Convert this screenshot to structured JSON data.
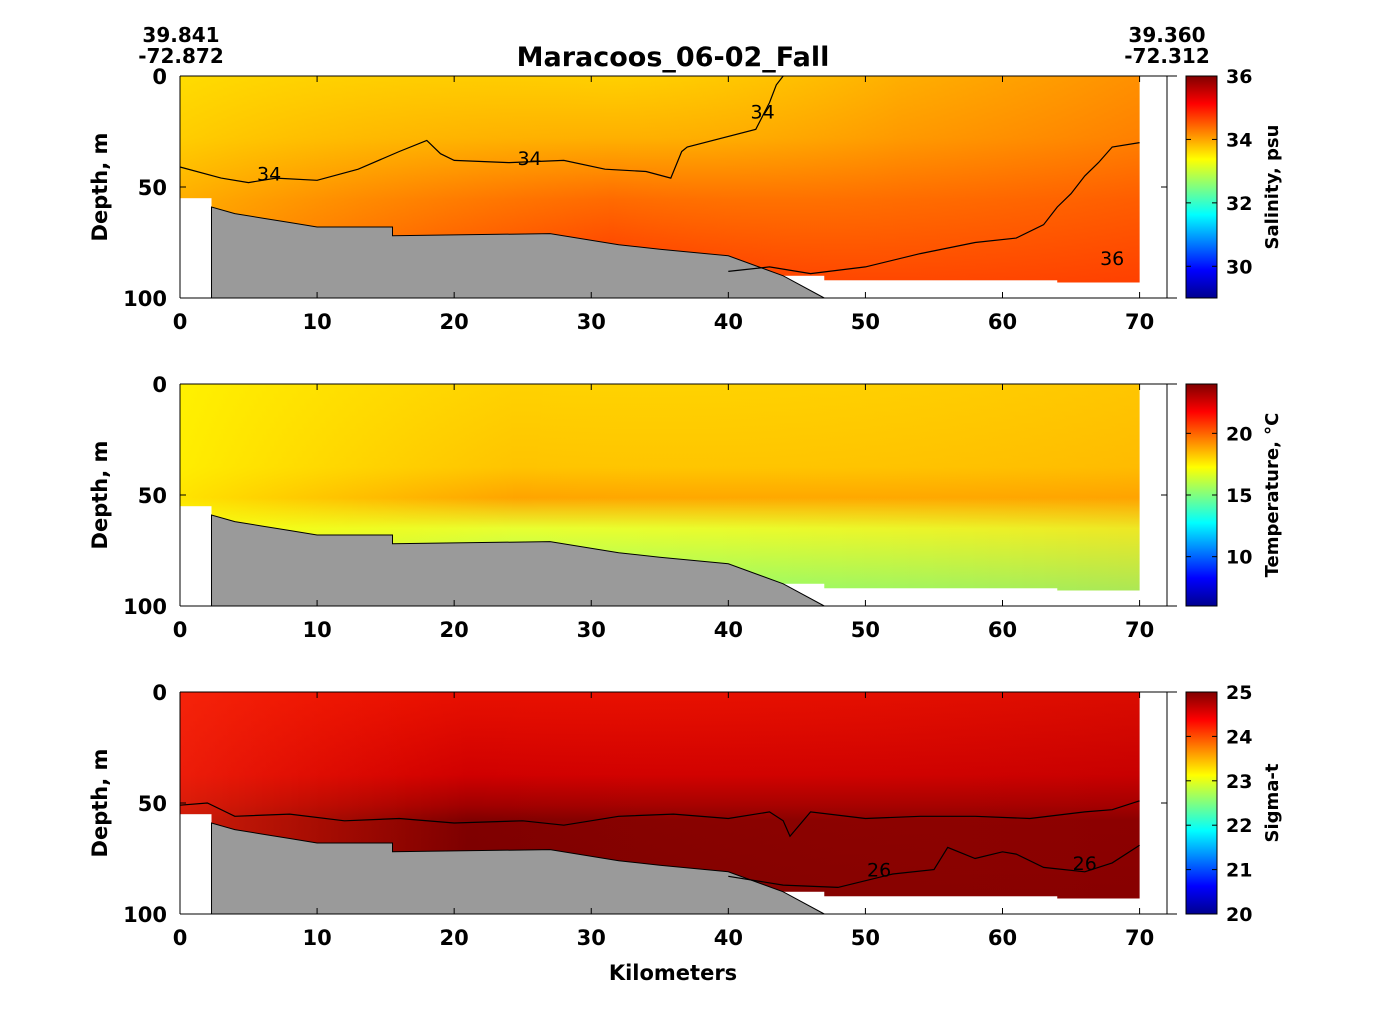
{
  "title": "Maracoos_06-02_Fall",
  "start_station": {
    "lat": "39.841",
    "lon": "-72.872"
  },
  "end_station": {
    "lat": "39.360",
    "lon": "-72.312"
  },
  "xlabel": "Kilometers",
  "colors": {
    "bathymetry": "#9a9a9a",
    "jet": [
      "#00008f",
      "#0000ff",
      "#0080ff",
      "#00ffff",
      "#80ff80",
      "#ffff00",
      "#ff8000",
      "#ff0000",
      "#800000"
    ]
  },
  "chart_data": [
    {
      "type": "heatmap",
      "variable": "salinity",
      "ylabel": "Depth, m",
      "xlim": [
        0,
        72
      ],
      "ylim": [
        100,
        0
      ],
      "x_ticks": [
        0,
        10,
        20,
        30,
        40,
        50,
        60,
        70
      ],
      "y_ticks": [
        0,
        50,
        100
      ],
      "colorbar": {
        "label": "Salinity, psu",
        "range": [
          29,
          36
        ],
        "ticks": [
          30,
          32,
          34,
          36
        ]
      },
      "contours": [
        {
          "level": 34,
          "label": "34",
          "points": [
            [
              0,
              41
            ],
            [
              3,
              46
            ],
            [
              5,
              48
            ],
            [
              7,
              46
            ],
            [
              10,
              47
            ],
            [
              13,
              42
            ],
            [
              16,
              34
            ],
            [
              18,
              29
            ],
            [
              19,
              35
            ],
            [
              20,
              38
            ],
            [
              24,
              39
            ],
            [
              28,
              38
            ],
            [
              31,
              42
            ],
            [
              34,
              43
            ],
            [
              35.8,
              46
            ],
            [
              36.6,
              34
            ],
            [
              37,
              32
            ],
            [
              42,
              24
            ],
            [
              43,
              12
            ],
            [
              43.5,
              4
            ],
            [
              44,
              0
            ]
          ]
        },
        {
          "level": 36,
          "label": "36",
          "points": [
            [
              40,
              88
            ],
            [
              43,
              86
            ],
            [
              46,
              89
            ],
            [
              50,
              86
            ],
            [
              54,
              80
            ],
            [
              58,
              75
            ],
            [
              61,
              73
            ],
            [
              63,
              67
            ],
            [
              64,
              59
            ],
            [
              65,
              53
            ],
            [
              66,
              45
            ],
            [
              67,
              39
            ],
            [
              68,
              32
            ],
            [
              70,
              30
            ]
          ]
        }
      ],
      "contour_labels": [
        {
          "text": "34",
          "x": 6.5,
          "y": 44
        },
        {
          "text": "34",
          "x": 25.5,
          "y": 37
        },
        {
          "text": "34",
          "x": 42.5,
          "y": 16
        },
        {
          "text": "36",
          "x": 68,
          "y": 82
        }
      ],
      "bathymetry": [
        [
          2.3,
          59
        ],
        [
          4,
          62
        ],
        [
          6,
          64
        ],
        [
          8,
          66
        ],
        [
          10,
          68
        ],
        [
          15.5,
          68
        ],
        [
          15.5,
          72
        ],
        [
          27,
          71
        ],
        [
          32,
          76
        ],
        [
          35,
          78
        ],
        [
          40,
          81
        ],
        [
          44,
          90
        ],
        [
          47,
          100
        ]
      ]
    },
    {
      "type": "heatmap",
      "variable": "temperature",
      "ylabel": "Depth, m",
      "xlim": [
        0,
        72
      ],
      "ylim": [
        100,
        0
      ],
      "x_ticks": [
        0,
        10,
        20,
        30,
        40,
        50,
        60,
        70
      ],
      "y_ticks": [
        0,
        50,
        100
      ],
      "colorbar": {
        "label": "Temperature, °C",
        "range": [
          6,
          24
        ],
        "ticks": [
          10,
          15,
          20
        ]
      },
      "contours": [],
      "contour_labels": [],
      "bathymetry": [
        [
          2.3,
          59
        ],
        [
          4,
          62
        ],
        [
          6,
          64
        ],
        [
          8,
          66
        ],
        [
          10,
          68
        ],
        [
          15.5,
          68
        ],
        [
          15.5,
          72
        ],
        [
          27,
          71
        ],
        [
          32,
          76
        ],
        [
          35,
          78
        ],
        [
          40,
          81
        ],
        [
          44,
          90
        ],
        [
          47,
          100
        ]
      ]
    },
    {
      "type": "heatmap",
      "variable": "sigma-t",
      "ylabel": "Depth, m",
      "xlim": [
        0,
        72
      ],
      "ylim": [
        100,
        0
      ],
      "x_ticks": [
        0,
        10,
        20,
        30,
        40,
        50,
        60,
        70
      ],
      "y_ticks": [
        0,
        50,
        100
      ],
      "colorbar": {
        "label": "Sigma-t",
        "range": [
          20,
          25
        ],
        "ticks": [
          20,
          21,
          22,
          23,
          24,
          25
        ]
      },
      "contours": [
        {
          "level": 26,
          "label": "26",
          "points": [
            [
              0,
              51
            ],
            [
              2,
              50
            ],
            [
              4,
              56
            ],
            [
              8,
              55
            ],
            [
              12,
              58
            ],
            [
              16,
              57
            ],
            [
              20,
              59
            ],
            [
              25,
              58
            ],
            [
              28,
              60
            ],
            [
              32,
              56
            ],
            [
              36,
              55
            ],
            [
              40,
              57
            ],
            [
              43,
              54
            ],
            [
              44,
              58
            ],
            [
              44.5,
              65
            ],
            [
              46,
              54
            ],
            [
              50,
              57
            ],
            [
              54,
              56
            ],
            [
              58,
              56
            ],
            [
              62,
              57
            ],
            [
              66,
              54
            ],
            [
              68,
              53
            ],
            [
              70,
              49
            ]
          ]
        },
        {
          "level": 26,
          "label": "26",
          "points": [
            [
              40,
              83
            ],
            [
              44,
              87
            ],
            [
              48,
              88
            ],
            [
              52,
              82
            ],
            [
              55,
              80
            ],
            [
              56,
              70
            ],
            [
              58,
              75
            ],
            [
              60,
              72
            ],
            [
              61,
              73
            ],
            [
              63,
              79
            ],
            [
              66,
              81
            ],
            [
              68,
              77
            ],
            [
              70,
              69
            ]
          ]
        }
      ],
      "contour_labels": [
        {
          "text": "26",
          "x": 51,
          "y": 80
        },
        {
          "text": "26",
          "x": 66,
          "y": 77
        }
      ],
      "bathymetry": [
        [
          2.3,
          59
        ],
        [
          4,
          62
        ],
        [
          6,
          64
        ],
        [
          8,
          66
        ],
        [
          10,
          68
        ],
        [
          15.5,
          68
        ],
        [
          15.5,
          72
        ],
        [
          27,
          71
        ],
        [
          32,
          76
        ],
        [
          35,
          78
        ],
        [
          40,
          81
        ],
        [
          44,
          90
        ],
        [
          47,
          100
        ]
      ]
    }
  ]
}
